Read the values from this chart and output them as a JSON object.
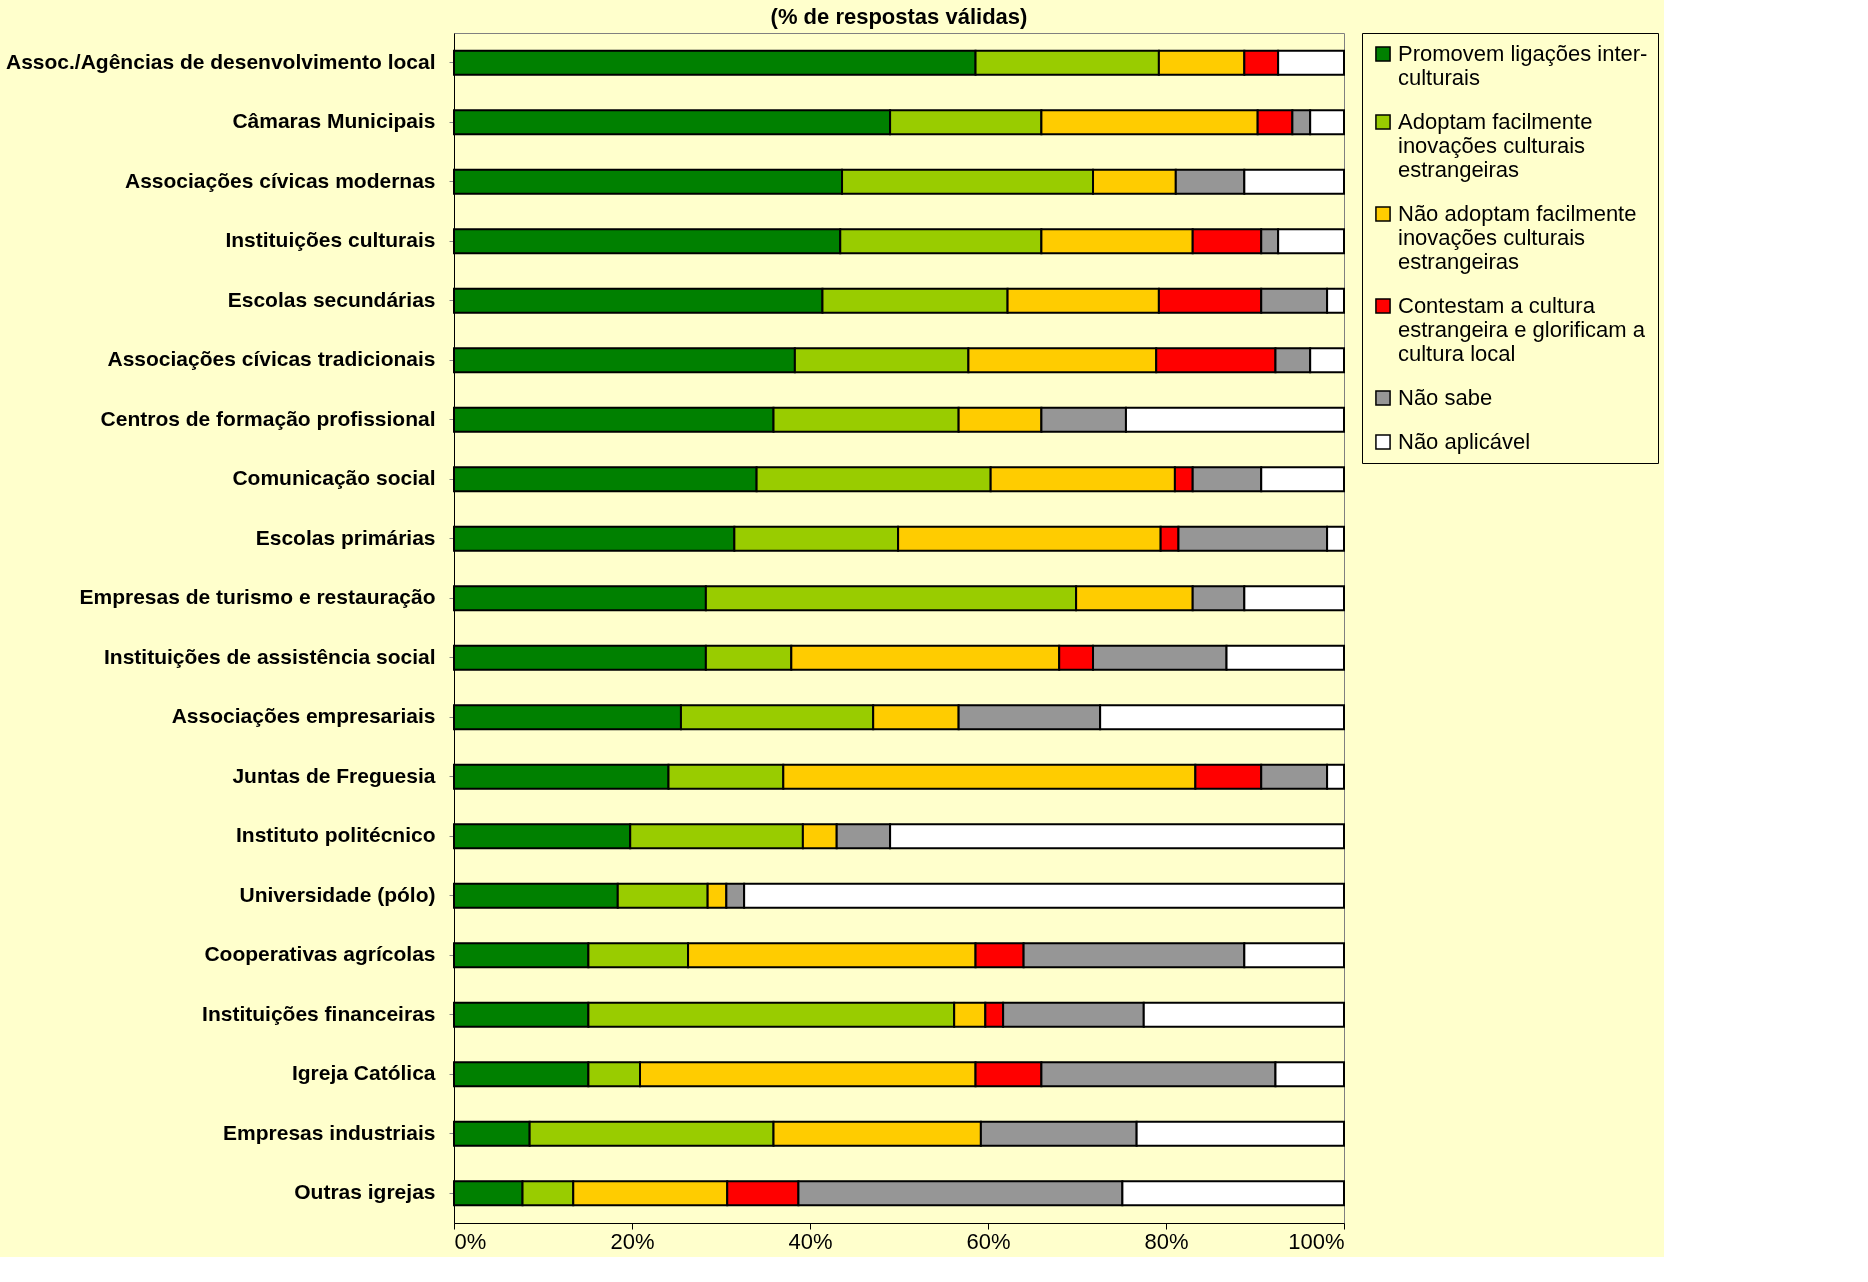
{
  "chart_data": {
    "type": "bar",
    "orientation": "horizontal",
    "stacked": true,
    "title": "(% de respostas válidas)",
    "categories": [
      "Assoc./Agências de desenvolvimento local",
      "Câmaras Municipais",
      "Associações cívicas modernas",
      "Instituições culturais",
      "Escolas secundárias",
      "Associações cívicas tradicionais",
      "Centros de formação profissional",
      "Comunicação social",
      "Escolas primárias",
      "Empresas de turismo e restauração",
      "Instituições de assistência social",
      "Associações empresariais",
      "Juntas de Freguesia",
      "Instituto politécnico",
      "Universidade (pólo)",
      "Cooperativas agrícolas",
      "Instituições financeiras",
      "Igreja Católica",
      "Empresas industriais",
      "Outras igrejas"
    ],
    "series": [
      {
        "name": "Promovem ligações inter-culturais",
        "color": "#008000",
        "values": [
          58.6,
          49.0,
          43.6,
          43.4,
          41.4,
          38.3,
          35.9,
          34.0,
          31.5,
          28.3,
          28.3,
          25.5,
          24.1,
          19.8,
          18.4,
          15.1,
          15.1,
          15.1,
          8.5,
          7.7
        ]
      },
      {
        "name": "Adoptam facilmente inovações culturais estrangeiras",
        "color": "#99cc00",
        "values": [
          20.6,
          17.0,
          28.2,
          22.6,
          20.8,
          19.5,
          20.8,
          26.3,
          18.4,
          41.6,
          9.6,
          21.6,
          12.9,
          19.4,
          10.1,
          11.2,
          41.1,
          5.8,
          27.4,
          5.7
        ]
      },
      {
        "name": "Não adoptam facilmente inovações culturais estrangeiras",
        "color": "#ffcc00",
        "values": [
          9.6,
          24.3,
          9.3,
          17.0,
          17.0,
          21.1,
          9.3,
          20.7,
          29.5,
          13.1,
          30.1,
          9.6,
          46.3,
          3.8,
          2.1,
          32.3,
          3.5,
          37.7,
          23.3,
          17.3
        ]
      },
      {
        "name": "Contestam a cultura estrangeira e glorificam a cultura local",
        "color": "#ff0000",
        "values": [
          3.8,
          3.9,
          null,
          7.7,
          11.5,
          13.4,
          null,
          2.0,
          2.0,
          null,
          3.8,
          null,
          7.4,
          null,
          null,
          5.4,
          2.0,
          7.4,
          null,
          8.0
        ]
      },
      {
        "name": "Não sabe",
        "color": "#969696",
        "values": [
          null,
          2.0,
          7.7,
          1.9,
          7.4,
          3.9,
          9.5,
          7.7,
          16.7,
          5.8,
          15.0,
          15.9,
          7.4,
          6.0,
          2.0,
          24.8,
          15.8,
          26.3,
          17.5,
          36.4
        ]
      },
      {
        "name": "Não aplicável",
        "color": "#ffffff",
        "values": [
          7.4,
          3.8,
          11.2,
          7.4,
          1.9,
          3.8,
          24.5,
          9.3,
          1.9,
          11.2,
          13.2,
          27.4,
          1.9,
          51.0,
          67.4,
          11.2,
          22.5,
          7.7,
          23.3,
          24.9
        ]
      }
    ],
    "xlim": [
      0,
      100
    ],
    "xticks": [
      {
        "value": 0,
        "label": "0%"
      },
      {
        "value": 20,
        "label": "20%"
      },
      {
        "value": 40,
        "label": "40%"
      },
      {
        "value": 60,
        "label": "60%"
      },
      {
        "value": 80,
        "label": "80%"
      },
      {
        "value": 100,
        "label": "100%"
      }
    ],
    "grid": false,
    "legend": "right"
  }
}
